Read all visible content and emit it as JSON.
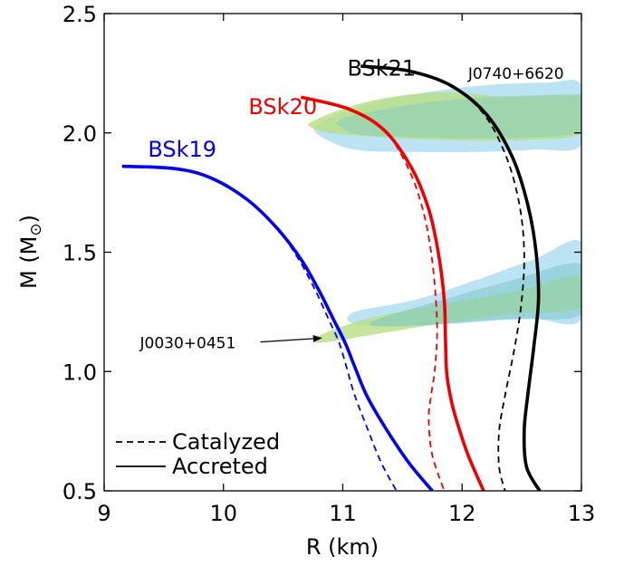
{
  "chart_data": {
    "type": "line",
    "xlabel": "R (km)",
    "ylabel": "M (M",
    "ylabel_sub": "⊙",
    "ylabel_close": ")",
    "xlim": [
      9,
      13
    ],
    "ylim": [
      0.5,
      2.5
    ],
    "xticks": [
      9,
      10,
      11,
      12,
      13
    ],
    "xtick_labels": [
      "9",
      "10",
      "11",
      "12",
      "13"
    ],
    "yticks": [
      0.5,
      1.0,
      1.5,
      2.0,
      2.5
    ],
    "ytick_labels": [
      "0.5",
      "1.0",
      "1.5",
      "2.0",
      "2.5"
    ],
    "grid": false,
    "legend": {
      "placement": "bottom-left",
      "entries": [
        {
          "label": "Catalyzed",
          "style": "dashed"
        },
        {
          "label": "Accreted",
          "style": "solid"
        }
      ]
    },
    "series": [
      {
        "name": "BSk19",
        "color": "#0000ee",
        "accreted": {
          "x": [
            9.15,
            9.6,
            9.9,
            10.2,
            10.45,
            10.65,
            10.8,
            10.92,
            11.02,
            11.1,
            11.2,
            11.35,
            11.55,
            11.75
          ],
          "y": [
            1.86,
            1.85,
            1.81,
            1.72,
            1.6,
            1.47,
            1.34,
            1.22,
            1.12,
            1.02,
            0.9,
            0.77,
            0.62,
            0.5
          ]
        },
        "catalyzed": {
          "x": [
            9.15,
            9.6,
            9.9,
            10.2,
            10.45,
            10.63,
            10.77,
            10.88,
            10.97,
            11.03,
            11.1,
            11.2,
            11.32,
            11.45
          ],
          "y": [
            1.86,
            1.85,
            1.81,
            1.72,
            1.6,
            1.47,
            1.34,
            1.22,
            1.12,
            1.02,
            0.9,
            0.77,
            0.62,
            0.5
          ]
        }
      },
      {
        "name": "BSk20",
        "color": "#ee0000",
        "accreted": {
          "x": [
            10.65,
            11.05,
            11.35,
            11.58,
            11.72,
            11.8,
            11.85,
            11.86,
            11.87,
            11.9,
            11.95,
            12.05,
            12.18
          ],
          "y": [
            2.15,
            2.1,
            2.01,
            1.85,
            1.68,
            1.5,
            1.3,
            1.15,
            1.0,
            0.9,
            0.8,
            0.65,
            0.5
          ]
        },
        "catalyzed": {
          "x": [
            10.65,
            11.05,
            11.35,
            11.55,
            11.67,
            11.74,
            11.78,
            11.79,
            11.77,
            11.74,
            11.72,
            11.75,
            11.85
          ],
          "y": [
            2.15,
            2.1,
            2.01,
            1.85,
            1.68,
            1.5,
            1.3,
            1.15,
            1.0,
            0.9,
            0.8,
            0.65,
            0.5
          ]
        }
      },
      {
        "name": "BSk21",
        "color": "#000000",
        "accreted": {
          "x": [
            11.15,
            11.55,
            11.9,
            12.2,
            12.42,
            12.55,
            12.62,
            12.64,
            12.6,
            12.55,
            12.52,
            12.54,
            12.65
          ],
          "y": [
            2.28,
            2.26,
            2.2,
            2.08,
            1.9,
            1.7,
            1.5,
            1.3,
            1.1,
            0.9,
            0.75,
            0.6,
            0.5
          ]
        },
        "catalyzed": {
          "x": [
            11.15,
            11.55,
            11.9,
            12.18,
            12.37,
            12.48,
            12.52,
            12.5,
            12.44,
            12.36,
            12.31,
            12.31,
            12.36
          ],
          "y": [
            2.28,
            2.26,
            2.2,
            2.08,
            1.9,
            1.7,
            1.5,
            1.3,
            1.1,
            0.9,
            0.75,
            0.6,
            0.5
          ]
        }
      }
    ],
    "series_labels": [
      {
        "text": "BSk19",
        "color": "#0000ee",
        "x": 9.2,
        "y": 1.93
      },
      {
        "text": "BSk20",
        "color": "#ee0000",
        "x": 9.8,
        "y": 2.11
      },
      {
        "text": "BSk21",
        "color": "#000000",
        "x": 10.4,
        "y": 2.27
      }
    ],
    "regions": [
      {
        "name": "J0740+6620",
        "color": "#a6d9ef",
        "opacity": 0.75,
        "x": [
          10.8,
          11.2,
          11.7,
          12.2,
          12.7,
          13.0,
          13.0,
          12.6,
          12.1,
          11.6,
          11.1,
          10.8
        ],
        "y": [
          2.04,
          2.12,
          2.17,
          2.2,
          2.21,
          2.2,
          1.95,
          1.93,
          1.92,
          1.92,
          1.93,
          1.99
        ]
      },
      {
        "name": "J0740+6620",
        "color": "#b7de82",
        "opacity": 0.8,
        "x": [
          10.75,
          11.2,
          11.8,
          12.4,
          13.0,
          13.0,
          12.5,
          11.9,
          11.4,
          10.9,
          10.75
        ],
        "y": [
          2.05,
          2.13,
          2.17,
          2.15,
          2.15,
          2.0,
          1.97,
          1.97,
          1.98,
          2.0,
          2.02
        ]
      },
      {
        "name": "J0740+6620",
        "color": "#8ccdb9",
        "opacity": 0.6,
        "x": [
          11.0,
          11.6,
          12.2,
          12.9,
          13.0,
          13.0,
          12.5,
          11.8,
          11.2,
          11.0
        ],
        "y": [
          2.06,
          2.12,
          2.15,
          2.16,
          2.15,
          2.01,
          1.98,
          1.98,
          1.99,
          2.02
        ]
      },
      {
        "name": "J0030+0451",
        "color": "#a6d9ef",
        "opacity": 0.75,
        "x": [
          11.1,
          11.6,
          12.1,
          12.6,
          13.0,
          13.0,
          12.6,
          12.1,
          11.6,
          11.1
        ],
        "y": [
          1.25,
          1.3,
          1.38,
          1.47,
          1.54,
          1.22,
          1.22,
          1.21,
          1.19,
          1.2
        ]
      },
      {
        "name": "J0030+0451",
        "color": "#b7de82",
        "opacity": 0.8,
        "x": [
          10.8,
          11.2,
          11.8,
          12.4,
          13.0,
          13.0,
          12.4,
          11.8,
          11.2,
          10.8
        ],
        "y": [
          1.15,
          1.22,
          1.28,
          1.33,
          1.4,
          1.27,
          1.24,
          1.2,
          1.15,
          1.12
        ]
      },
      {
        "name": "J0030+0451",
        "color": "#7cc6c6",
        "opacity": 0.55,
        "x": [
          11.3,
          11.9,
          12.4,
          13.0,
          13.0,
          12.4,
          11.9,
          11.3
        ],
        "y": [
          1.22,
          1.31,
          1.38,
          1.45,
          1.24,
          1.22,
          1.2,
          1.19
        ]
      }
    ],
    "annotations": [
      {
        "text": "J0740+6620",
        "x": 12.05,
        "y": 2.25
      },
      {
        "text": "J0030+0451",
        "x": 9.3,
        "y": 1.12,
        "arrow_to": [
          10.82,
          1.14
        ]
      }
    ]
  }
}
